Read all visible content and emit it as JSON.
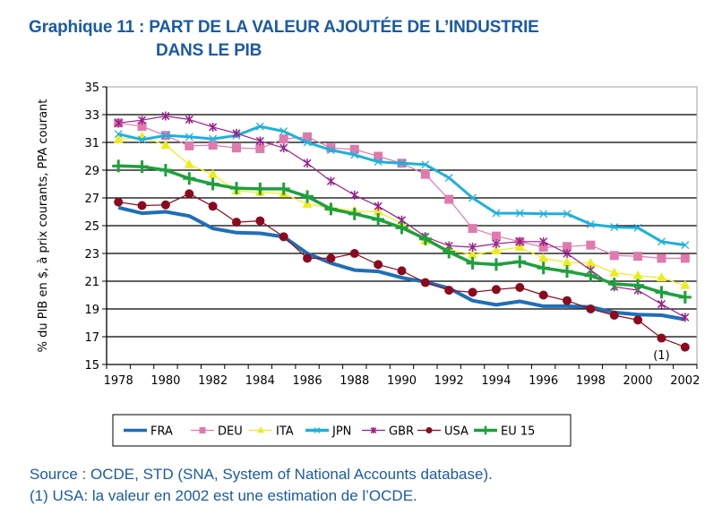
{
  "title": {
    "line1": "Graphique 11 : PART DE LA VALEUR AJOUTÉE DE L’INDUSTRIE",
    "line2": "DANS LE PIB"
  },
  "footer": {
    "source": "Source : OCDE, STD  (SNA, System of National Accounts database).",
    "note": "(1) USA: la valeur en 2002 est une estimation de l’OCDE."
  },
  "colors": {
    "FRA": "#1f6fb8",
    "DEU": "#e07aad",
    "ITA": "#ecec1a",
    "JPN": "#1eb0dc",
    "GBR": "#9b1f8a",
    "USA": "#8b0a1e",
    "EU 15": "#1ea03c",
    "title": "#1a5aa6"
  },
  "chart_data": {
    "type": "line",
    "title": "PART DE LA VALEUR AJOUTÉE DE L’INDUSTRIE DANS LE PIB",
    "xlabel": "",
    "ylabel": "% du PIB en $, à prix courants, PPA courant",
    "ylim": [
      15,
      35
    ],
    "yticks": [
      15,
      17,
      19,
      21,
      23,
      25,
      27,
      29,
      31,
      33,
      35
    ],
    "grid": true,
    "legend_position": "bottom",
    "x": [
      1978,
      1979,
      1980,
      1981,
      1982,
      1983,
      1984,
      1985,
      1986,
      1987,
      1988,
      1989,
      1990,
      1991,
      1992,
      1993,
      1994,
      1995,
      1996,
      1997,
      1998,
      1999,
      2000,
      2001,
      2002
    ],
    "xtick_labels": [
      "1978",
      "1980",
      "1982",
      "1984",
      "1986",
      "1988",
      "1990",
      "1992",
      "1994",
      "1996",
      "1998",
      "2000",
      "2002"
    ],
    "annotations": [
      {
        "x": 2001,
        "y": 15.7,
        "text": "(1)"
      }
    ],
    "series": [
      {
        "name": "FRA",
        "marker": "none",
        "values": [
          26.3,
          25.9,
          26.0,
          25.7,
          24.8,
          24.5,
          24.45,
          24.2,
          23.0,
          22.3,
          21.8,
          21.7,
          21.25,
          20.95,
          20.5,
          19.6,
          19.3,
          19.55,
          19.2,
          19.2,
          19.15,
          18.75,
          18.6,
          18.55,
          18.25
        ]
      },
      {
        "name": "DEU",
        "marker": "square",
        "values": [
          32.4,
          32.15,
          31.5,
          30.75,
          30.8,
          30.6,
          30.55,
          31.25,
          31.4,
          30.6,
          30.5,
          30.0,
          29.5,
          28.7,
          26.9,
          24.8,
          24.25,
          23.85,
          23.45,
          23.5,
          23.6,
          22.85,
          22.8,
          22.65,
          22.65
        ]
      },
      {
        "name": "ITA",
        "marker": "triangle",
        "values": [
          31.2,
          31.4,
          30.8,
          29.4,
          28.7,
          27.5,
          27.4,
          27.3,
          26.55,
          26.3,
          26.05,
          26.0,
          25.15,
          23.9,
          23.3,
          22.9,
          23.2,
          23.45,
          22.65,
          22.35,
          22.3,
          21.6,
          21.4,
          21.25,
          20.7
        ]
      },
      {
        "name": "JPN",
        "marker": "x",
        "values": [
          31.6,
          31.2,
          31.5,
          31.4,
          31.25,
          31.5,
          32.15,
          31.8,
          31.0,
          30.45,
          30.1,
          29.6,
          29.5,
          29.4,
          28.45,
          27.0,
          25.9,
          25.9,
          25.85,
          25.85,
          25.1,
          24.9,
          24.85,
          23.85,
          23.6
        ]
      },
      {
        "name": "GBR",
        "marker": "star",
        "values": [
          32.4,
          32.6,
          32.9,
          32.65,
          32.1,
          31.65,
          31.1,
          30.6,
          29.5,
          28.2,
          27.2,
          26.4,
          25.4,
          24.2,
          23.55,
          23.45,
          23.7,
          23.85,
          23.85,
          23.0,
          21.8,
          20.6,
          20.35,
          19.35,
          18.4
        ]
      },
      {
        "name": "USA",
        "marker": "circle",
        "values": [
          26.7,
          26.45,
          26.5,
          27.3,
          26.4,
          25.25,
          25.35,
          24.2,
          22.65,
          22.65,
          23.0,
          22.2,
          21.75,
          20.9,
          20.35,
          20.2,
          20.4,
          20.55,
          20.0,
          19.6,
          19.0,
          18.55,
          18.2,
          16.9,
          16.25
        ]
      },
      {
        "name": "EU 15",
        "marker": "plus",
        "values": [
          29.3,
          29.25,
          29.0,
          28.4,
          28.0,
          27.7,
          27.65,
          27.65,
          27.1,
          26.2,
          25.85,
          25.45,
          24.85,
          24.05,
          23.1,
          22.3,
          22.2,
          22.4,
          21.95,
          21.7,
          21.4,
          20.8,
          20.7,
          20.2,
          19.85
        ]
      }
    ]
  }
}
